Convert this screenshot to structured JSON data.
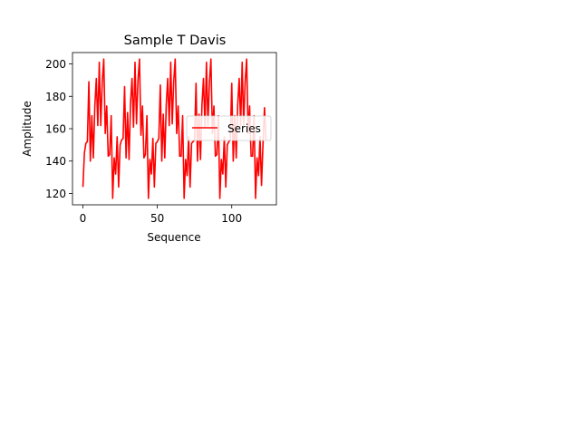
{
  "chart_data": {
    "type": "line",
    "title": "Sample T Davis",
    "xlabel": "Sequence",
    "ylabel": "Amplitude",
    "xlim": [
      -7,
      130
    ],
    "ylim": [
      113,
      207
    ],
    "xticks": [
      0,
      50,
      100
    ],
    "yticks": [
      120,
      140,
      160,
      180,
      200
    ],
    "xtick_labels": [
      "0",
      "50",
      "100"
    ],
    "ytick_labels": [
      "120",
      "140",
      "160",
      "180",
      "200"
    ],
    "grid": false,
    "legend_position": "center-right",
    "series": [
      {
        "name": "Series",
        "color": "#ff0000",
        "x": [
          0,
          1,
          2,
          3,
          4,
          5,
          6,
          7,
          8,
          9,
          10,
          11,
          12,
          13,
          14,
          15,
          16,
          17,
          18,
          19,
          20,
          21,
          22,
          23,
          24,
          25,
          26,
          27,
          28,
          29,
          30,
          31,
          32,
          33,
          34,
          35,
          36,
          37,
          38,
          39,
          40,
          41,
          42,
          43,
          44,
          45,
          46,
          47,
          48,
          49,
          50,
          51,
          52,
          53,
          54,
          55,
          56,
          57,
          58,
          59,
          60,
          61,
          62,
          63,
          64,
          65,
          66,
          67,
          68,
          69,
          70,
          71,
          72,
          73,
          74,
          75,
          76,
          77,
          78,
          79,
          80,
          81,
          82,
          83,
          84,
          85,
          86,
          87,
          88,
          89,
          90,
          91,
          92,
          93,
          94,
          95,
          96,
          97,
          98,
          99,
          100,
          101,
          102,
          103,
          104,
          105,
          106,
          107,
          108,
          109,
          110,
          111,
          112,
          113,
          114,
          115,
          116,
          117,
          118,
          119,
          120,
          121,
          122,
          123
        ],
        "y": [
          124,
          145,
          151,
          152,
          189,
          140,
          168,
          142,
          174,
          191,
          162,
          201,
          162,
          189,
          203,
          157,
          174,
          143,
          144,
          168,
          117,
          142,
          132,
          155,
          124,
          150,
          153,
          154,
          186,
          142,
          170,
          141,
          176,
          191,
          161,
          201,
          163,
          190,
          203,
          156,
          174,
          142,
          144,
          168,
          117,
          141,
          132,
          154,
          124,
          151,
          152,
          154,
          187,
          140,
          169,
          142,
          175,
          191,
          162,
          201,
          163,
          189,
          203,
          157,
          174,
          143,
          143,
          168,
          117,
          141,
          131,
          155,
          124,
          151,
          152,
          153,
          188,
          140,
          169,
          141,
          175,
          191,
          161,
          201,
          162,
          189,
          203,
          157,
          174,
          143,
          144,
          168,
          117,
          141,
          132,
          155,
          124,
          150,
          152,
          153,
          188,
          140,
          168,
          142,
          175,
          191,
          162,
          201,
          162,
          189,
          203,
          157,
          174,
          143,
          143,
          168,
          117,
          142,
          131,
          155,
          125,
          151,
          173,
          153
        ]
      }
    ]
  }
}
